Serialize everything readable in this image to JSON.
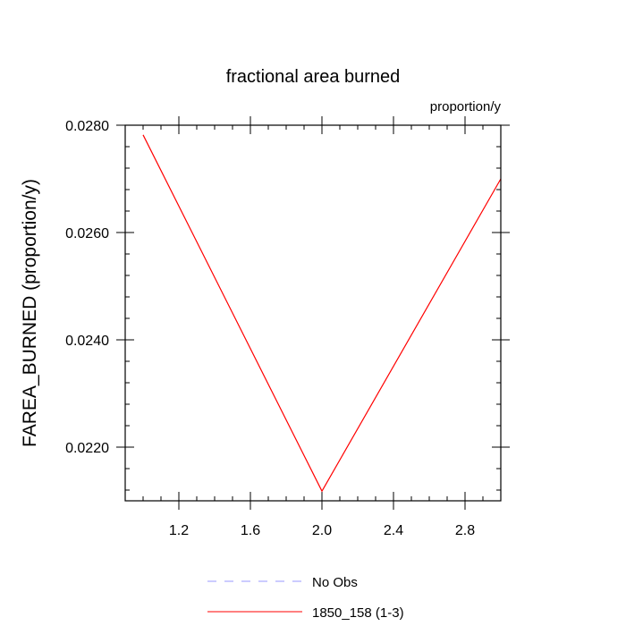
{
  "chart_data": {
    "type": "line",
    "title": "fractional area burned",
    "units_label": "proportion/y",
    "ylabel": "FAREA_BURNED  (proportion/y)",
    "xlabel": "",
    "xlim": [
      0.9,
      3.0
    ],
    "ylim": [
      0.021,
      0.028
    ],
    "x_ticks": [
      1.2,
      1.6,
      2.0,
      2.4,
      2.8
    ],
    "x_tick_labels": [
      "1.2",
      "1.6",
      "2.0",
      "2.4",
      "2.8"
    ],
    "y_ticks": [
      0.022,
      0.024,
      0.026,
      0.028
    ],
    "y_tick_labels": [
      "0.0220",
      "0.0240",
      "0.0260",
      "0.0280"
    ],
    "series": [
      {
        "name": "1850_158 (1-3)",
        "color": "#ff0000",
        "dash": "solid",
        "x": [
          1.0,
          2.0,
          3.0
        ],
        "y": [
          0.02782,
          0.02118,
          0.027
        ]
      }
    ],
    "legend": [
      {
        "label": "No Obs",
        "color": "#9999ff",
        "dash": "dashed"
      },
      {
        "label": "1850_158 (1-3)",
        "color": "#ff0000",
        "dash": "solid"
      }
    ],
    "legend_position": "bottom-center",
    "grid": false
  }
}
